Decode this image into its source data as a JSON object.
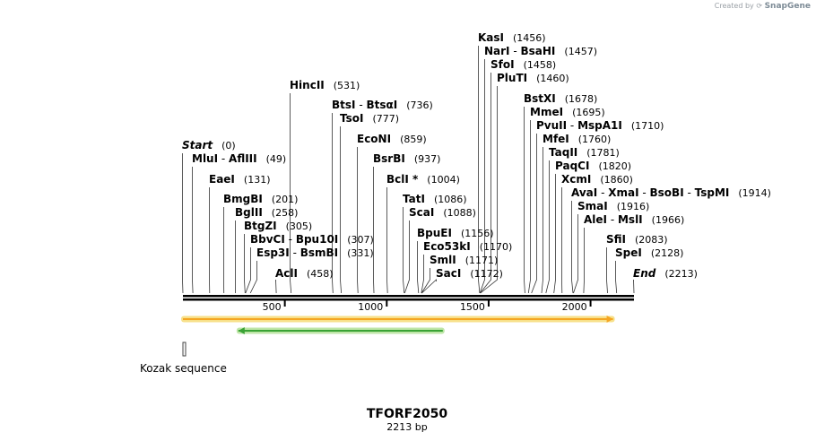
{
  "watermark": {
    "prefix": "Created by",
    "brand": "SnapGene"
  },
  "map": {
    "name": "TFORF2050",
    "length_label": "2213 bp",
    "length_bp": 2213,
    "axis_ticks": [
      "500",
      "1000",
      "1500",
      "2000"
    ]
  },
  "sites": [
    {
      "names": [
        "KasI"
      ],
      "pos": "(1456)",
      "bp": 1456
    },
    {
      "names": [
        "NarI",
        "BsaHI"
      ],
      "pos": "(1457)",
      "bp": 1457
    },
    {
      "names": [
        "SfoI"
      ],
      "pos": "(1458)",
      "bp": 1458
    },
    {
      "names": [
        "PluTI"
      ],
      "pos": "(1460)",
      "bp": 1460
    },
    {
      "names": [
        "HincII"
      ],
      "pos": "(531)",
      "bp": 531
    },
    {
      "names": [
        "BtsI",
        "BtsαI"
      ],
      "pos": "(736)",
      "bp": 736
    },
    {
      "names": [
        "TsoI"
      ],
      "pos": "(777)",
      "bp": 777
    },
    {
      "names": [
        "BstXI"
      ],
      "pos": "(1678)",
      "bp": 1678
    },
    {
      "names": [
        "MmeI"
      ],
      "pos": "(1695)",
      "bp": 1695
    },
    {
      "names": [
        "PvuII",
        "MspA1I"
      ],
      "pos": "(1710)",
      "bp": 1710
    },
    {
      "names": [
        "EcoNI"
      ],
      "pos": "(859)",
      "bp": 859
    },
    {
      "names": [
        "MfeI"
      ],
      "pos": "(1760)",
      "bp": 1760
    },
    {
      "names": [
        "Start"
      ],
      "pos": "(0)",
      "bp": 0,
      "italic": true
    },
    {
      "names": [
        "BsrBI"
      ],
      "pos": "(937)",
      "bp": 937
    },
    {
      "names": [
        "TaqII"
      ],
      "pos": "(1781)",
      "bp": 1781
    },
    {
      "names": [
        "MluI",
        "AflIII"
      ],
      "pos": "(49)",
      "bp": 49
    },
    {
      "names": [
        "PaqCI"
      ],
      "pos": "(1820)",
      "bp": 1820
    },
    {
      "names": [
        "EaeI"
      ],
      "pos": "(131)",
      "bp": 131
    },
    {
      "names": [
        "BclI *"
      ],
      "pos": "(1004)",
      "bp": 1004
    },
    {
      "names": [
        "XcmI"
      ],
      "pos": "(1860)",
      "bp": 1860
    },
    {
      "names": [
        "AvaI",
        "XmaI",
        "BsoBI",
        "TspMI"
      ],
      "pos": "(1914)",
      "bp": 1914
    },
    {
      "names": [
        "TatI"
      ],
      "pos": "(1086)",
      "bp": 1086
    },
    {
      "names": [
        "BmgBI"
      ],
      "pos": "(201)",
      "bp": 201
    },
    {
      "names": [
        "SmaI"
      ],
      "pos": "(1916)",
      "bp": 1916
    },
    {
      "names": [
        "BglII"
      ],
      "pos": "(258)",
      "bp": 258
    },
    {
      "names": [
        "ScaI"
      ],
      "pos": "(1088)",
      "bp": 1088
    },
    {
      "names": [
        "AleI",
        "MslI"
      ],
      "pos": "(1966)",
      "bp": 1966
    },
    {
      "names": [
        "BtgZI"
      ],
      "pos": "(305)",
      "bp": 305
    },
    {
      "names": [
        "BpuEI"
      ],
      "pos": "(1156)",
      "bp": 1156
    },
    {
      "names": [
        "BbvCI",
        "Bpu10I"
      ],
      "pos": "(307)",
      "bp": 307
    },
    {
      "names": [
        "SfiI"
      ],
      "pos": "(2083)",
      "bp": 2083
    },
    {
      "names": [
        "Eco53kI"
      ],
      "pos": "(1170)",
      "bp": 1170
    },
    {
      "names": [
        "Esp3I",
        "BsmBI"
      ],
      "pos": "(331)",
      "bp": 331
    },
    {
      "names": [
        "SpeI"
      ],
      "pos": "(2128)",
      "bp": 2128
    },
    {
      "names": [
        "SmlI"
      ],
      "pos": "(1171)",
      "bp": 1171
    },
    {
      "names": [
        "AclI"
      ],
      "pos": "(458)",
      "bp": 458
    },
    {
      "names": [
        "SacI"
      ],
      "pos": "(1172)",
      "bp": 1172
    },
    {
      "names": [
        "End"
      ],
      "pos": "(2213)",
      "bp": 2213,
      "italic": true
    }
  ],
  "features": [
    {
      "name": "ORF forward",
      "start_bp": 0,
      "end_bp": 2110,
      "direction": "forward",
      "color": "#f5a623",
      "halo": "#f7e08a"
    },
    {
      "name": "ORF reverse",
      "start_bp": 272,
      "end_bp": 1275,
      "direction": "reverse",
      "color": "#3aa335",
      "halo": "#bfe6a8"
    },
    {
      "label": "Kozak sequence",
      "start_bp": 0,
      "end_bp": 6
    }
  ]
}
